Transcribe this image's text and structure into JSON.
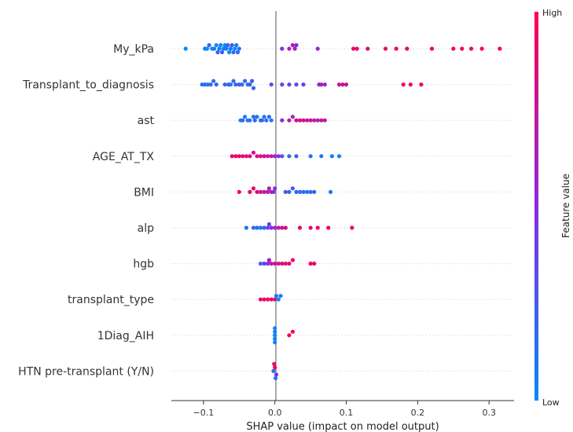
{
  "chart_data": {
    "type": "scatter",
    "subtype": "shap-beeswarm",
    "xlabel": "SHAP value (impact on model output)",
    "xlim": [
      -0.145,
      0.335
    ],
    "x_ticks": [
      -0.1,
      0.0,
      0.1,
      0.2,
      0.3
    ],
    "x_tick_labels": [
      "−0.1",
      "0.0",
      "0.1",
      "0.2",
      "0.3"
    ],
    "colorbar": {
      "title": "Feature value",
      "high_label": "High",
      "low_label": "Low",
      "high_color": "#ff0052",
      "mid_color": "#8a2be2",
      "low_color": "#008bfb"
    },
    "features": [
      {
        "name": "My_kPa",
        "points": [
          [
            -0.125,
            0.0
          ],
          [
            -0.098,
            0.1
          ],
          [
            -0.095,
            0.0
          ],
          [
            -0.092,
            0.2
          ],
          [
            -0.088,
            0.0
          ],
          [
            -0.085,
            0.1
          ],
          [
            -0.082,
            0.0
          ],
          [
            -0.08,
            0.2
          ],
          [
            -0.078,
            0.1
          ],
          [
            -0.076,
            0.0
          ],
          [
            -0.074,
            0.2
          ],
          [
            -0.072,
            0.1
          ],
          [
            -0.07,
            0.0
          ],
          [
            -0.068,
            0.1
          ],
          [
            -0.066,
            0.2
          ],
          [
            -0.064,
            0.0
          ],
          [
            -0.062,
            0.1
          ],
          [
            -0.06,
            0.3
          ],
          [
            -0.058,
            0.2
          ],
          [
            -0.056,
            0.0
          ],
          [
            -0.054,
            0.1
          ],
          [
            -0.052,
            0.2
          ],
          [
            -0.05,
            0.1
          ],
          [
            0.01,
            0.5
          ],
          [
            0.02,
            0.6
          ],
          [
            0.025,
            0.7
          ],
          [
            0.028,
            0.6
          ],
          [
            0.03,
            0.5
          ],
          [
            0.06,
            0.55
          ],
          [
            0.11,
            0.95
          ],
          [
            0.115,
            0.9
          ],
          [
            0.13,
            0.85
          ],
          [
            0.155,
            0.9
          ],
          [
            0.17,
            0.95
          ],
          [
            0.185,
            0.9
          ],
          [
            0.22,
            0.95
          ],
          [
            0.25,
            0.95
          ],
          [
            0.262,
            0.97
          ],
          [
            0.275,
            0.95
          ],
          [
            0.29,
            1.0
          ],
          [
            0.315,
            1.0
          ]
        ]
      },
      {
        "name": "Transplant_to_diagnosis",
        "points": [
          [
            -0.102,
            0.1
          ],
          [
            -0.098,
            0.2
          ],
          [
            -0.094,
            0.1
          ],
          [
            -0.09,
            0.2
          ],
          [
            -0.086,
            0.1
          ],
          [
            -0.082,
            0.2
          ],
          [
            -0.07,
            0.15
          ],
          [
            -0.065,
            0.25
          ],
          [
            -0.062,
            0.15
          ],
          [
            -0.058,
            0.1
          ],
          [
            -0.055,
            0.2
          ],
          [
            -0.05,
            0.25
          ],
          [
            -0.046,
            0.15
          ],
          [
            -0.042,
            0.2
          ],
          [
            -0.038,
            0.15
          ],
          [
            -0.035,
            0.2
          ],
          [
            -0.032,
            0.25
          ],
          [
            -0.03,
            0.2
          ],
          [
            -0.005,
            0.3
          ],
          [
            0.01,
            0.35
          ],
          [
            0.02,
            0.4
          ],
          [
            0.03,
            0.35
          ],
          [
            0.04,
            0.4
          ],
          [
            0.062,
            0.6
          ],
          [
            0.065,
            0.65
          ],
          [
            0.07,
            0.55
          ],
          [
            0.09,
            0.75
          ],
          [
            0.095,
            0.8
          ],
          [
            0.1,
            0.7
          ],
          [
            0.18,
            0.95
          ],
          [
            0.19,
            0.9
          ],
          [
            0.205,
            0.95
          ]
        ]
      },
      {
        "name": "ast",
        "points": [
          [
            -0.048,
            0.1
          ],
          [
            -0.045,
            0.15
          ],
          [
            -0.042,
            0.1
          ],
          [
            -0.038,
            0.2
          ],
          [
            -0.035,
            0.1
          ],
          [
            -0.03,
            0.15
          ],
          [
            -0.028,
            0.2
          ],
          [
            -0.025,
            0.1
          ],
          [
            -0.02,
            0.15
          ],
          [
            -0.018,
            0.2
          ],
          [
            -0.015,
            0.1
          ],
          [
            -0.012,
            0.15
          ],
          [
            -0.008,
            0.2
          ],
          [
            -0.005,
            0.1
          ],
          [
            0.01,
            0.5
          ],
          [
            0.02,
            0.7
          ],
          [
            0.025,
            0.6
          ],
          [
            0.03,
            0.8
          ],
          [
            0.035,
            0.75
          ],
          [
            0.04,
            0.85
          ],
          [
            0.045,
            0.7
          ],
          [
            0.05,
            0.8
          ],
          [
            0.055,
            0.75
          ],
          [
            0.06,
            0.65
          ],
          [
            0.065,
            0.75
          ],
          [
            0.07,
            0.7
          ]
        ]
      },
      {
        "name": "AGE_AT_TX",
        "points": [
          [
            -0.06,
            0.95
          ],
          [
            -0.055,
            0.9
          ],
          [
            -0.05,
            0.95
          ],
          [
            -0.045,
            0.85
          ],
          [
            -0.04,
            0.9
          ],
          [
            -0.035,
            0.85
          ],
          [
            -0.03,
            0.8
          ],
          [
            -0.025,
            0.9
          ],
          [
            -0.02,
            0.85
          ],
          [
            -0.015,
            0.8
          ],
          [
            -0.01,
            0.75
          ],
          [
            -0.005,
            0.7
          ],
          [
            0.0,
            0.6
          ],
          [
            0.005,
            0.5
          ],
          [
            0.01,
            0.3
          ],
          [
            0.02,
            0.2
          ],
          [
            0.03,
            0.25
          ],
          [
            0.05,
            0.15
          ],
          [
            0.065,
            0.1
          ],
          [
            0.08,
            0.1
          ],
          [
            0.09,
            0.05
          ]
        ]
      },
      {
        "name": "BMI",
        "points": [
          [
            -0.05,
            0.95
          ],
          [
            -0.035,
            0.9
          ],
          [
            -0.03,
            0.95
          ],
          [
            -0.025,
            0.85
          ],
          [
            -0.02,
            0.8
          ],
          [
            -0.015,
            0.75
          ],
          [
            -0.01,
            0.7
          ],
          [
            -0.008,
            0.65
          ],
          [
            -0.005,
            0.6
          ],
          [
            -0.002,
            0.55
          ],
          [
            0.0,
            0.5
          ],
          [
            0.015,
            0.3
          ],
          [
            0.02,
            0.2
          ],
          [
            0.025,
            0.25
          ],
          [
            0.03,
            0.2
          ],
          [
            0.035,
            0.15
          ],
          [
            0.04,
            0.2
          ],
          [
            0.045,
            0.1
          ],
          [
            0.05,
            0.15
          ],
          [
            0.055,
            0.2
          ],
          [
            0.078,
            0.1
          ]
        ]
      },
      {
        "name": "alp",
        "points": [
          [
            -0.04,
            0.1
          ],
          [
            -0.03,
            0.2
          ],
          [
            -0.025,
            0.15
          ],
          [
            -0.02,
            0.1
          ],
          [
            -0.015,
            0.25
          ],
          [
            -0.01,
            0.3
          ],
          [
            -0.008,
            0.4
          ],
          [
            -0.005,
            0.5
          ],
          [
            0.0,
            0.6
          ],
          [
            0.005,
            0.7
          ],
          [
            0.01,
            0.8
          ],
          [
            0.015,
            0.85
          ],
          [
            0.035,
            0.9
          ],
          [
            0.05,
            0.9
          ],
          [
            0.06,
            0.95
          ],
          [
            0.075,
            0.95
          ],
          [
            0.108,
            0.95
          ]
        ]
      },
      {
        "name": "hgb",
        "points": [
          [
            -0.02,
            0.2
          ],
          [
            -0.015,
            0.4
          ],
          [
            -0.01,
            0.5
          ],
          [
            -0.008,
            0.6
          ],
          [
            -0.005,
            0.7
          ],
          [
            0.0,
            0.75
          ],
          [
            0.005,
            0.8
          ],
          [
            0.01,
            0.85
          ],
          [
            0.015,
            0.9
          ],
          [
            0.02,
            0.85
          ],
          [
            0.025,
            0.95
          ],
          [
            0.05,
            0.95
          ],
          [
            0.055,
            0.9
          ]
        ]
      },
      {
        "name": "transplant_type",
        "points": [
          [
            -0.02,
            0.95
          ],
          [
            -0.015,
            0.9
          ],
          [
            -0.01,
            0.95
          ],
          [
            -0.005,
            0.9
          ],
          [
            0.0,
            0.85
          ],
          [
            0.002,
            0.1
          ],
          [
            0.005,
            0.05
          ],
          [
            0.008,
            0.1
          ]
        ]
      },
      {
        "name": "1Diag_AIH",
        "points": [
          [
            0.0,
            0.05
          ],
          [
            0.0,
            0.05
          ],
          [
            0.0,
            0.05
          ],
          [
            0.0,
            0.05
          ],
          [
            0.0,
            0.05
          ],
          [
            0.02,
            0.95
          ],
          [
            0.025,
            0.95
          ]
        ]
      },
      {
        "name": "HTN pre-transplant (Y/N)",
        "points": [
          [
            -0.002,
            0.1
          ],
          [
            0.0,
            0.9
          ],
          [
            0.002,
            0.5
          ],
          [
            -0.001,
            0.95
          ],
          [
            0.001,
            0.15
          ]
        ]
      }
    ]
  }
}
